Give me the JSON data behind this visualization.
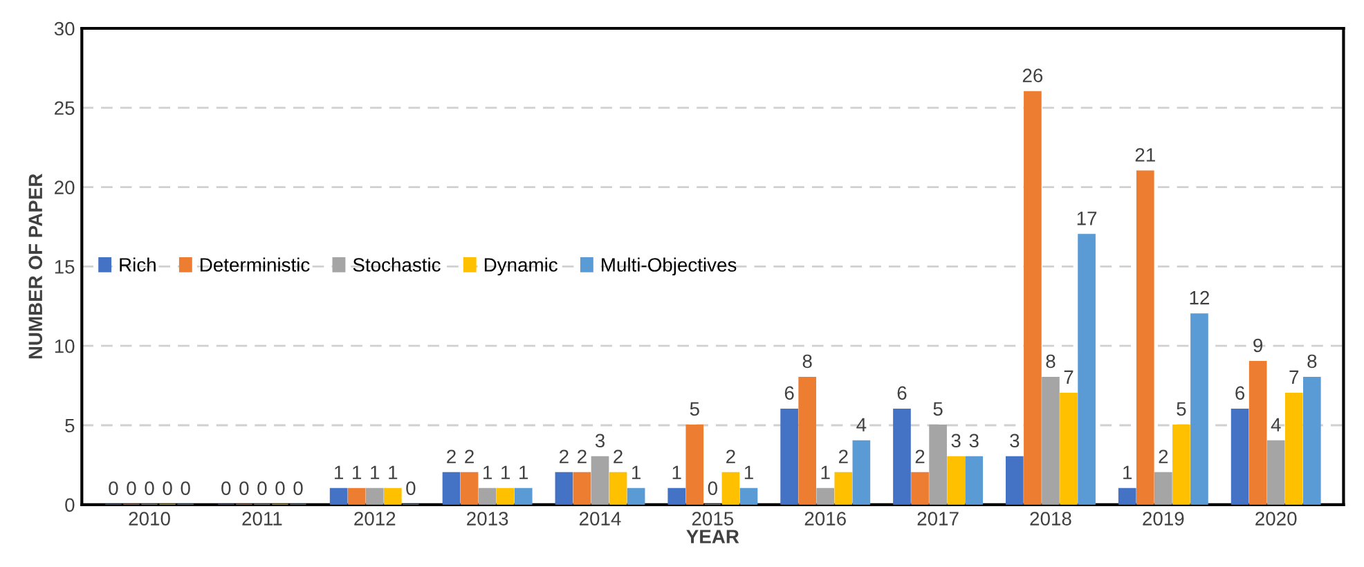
{
  "chart_data": {
    "type": "bar",
    "xlabel": "YEAR",
    "ylabel": "NUMBER OF PAPER",
    "categories": [
      "2010",
      "2011",
      "2012",
      "2013",
      "2014",
      "2015",
      "2016",
      "2017",
      "2018",
      "2019",
      "2020"
    ],
    "series": [
      {
        "name": "Rich",
        "color": "#4472c4",
        "values": [
          0,
          0,
          1,
          2,
          2,
          1,
          6,
          6,
          3,
          1,
          6
        ]
      },
      {
        "name": "Deterministic",
        "color": "#ed7d31",
        "values": [
          0,
          0,
          1,
          2,
          2,
          5,
          8,
          2,
          26,
          21,
          9
        ]
      },
      {
        "name": "Stochastic",
        "color": "#a5a5a5",
        "values": [
          0,
          0,
          1,
          1,
          3,
          0,
          1,
          5,
          8,
          2,
          4
        ]
      },
      {
        "name": "Dynamic",
        "color": "#ffc000",
        "values": [
          0,
          0,
          1,
          1,
          2,
          2,
          2,
          3,
          7,
          5,
          7
        ]
      },
      {
        "name": "Multi-Objectives",
        "color": "#5b9bd5",
        "values": [
          0,
          0,
          0,
          1,
          1,
          1,
          4,
          3,
          17,
          12,
          8
        ]
      }
    ],
    "ylim": [
      0,
      30
    ],
    "yticks": [
      0,
      5,
      10,
      15,
      20,
      25,
      30
    ],
    "grid": "y",
    "legend": "left",
    "data_labels": true
  }
}
